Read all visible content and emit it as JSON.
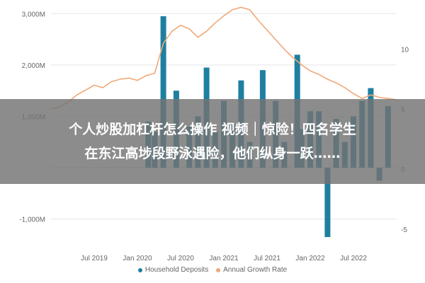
{
  "chart_data": {
    "type": "bar",
    "ylabel_left_ticks": [
      "3,000M",
      "2,000M",
      "1,000M",
      "-1,000M"
    ],
    "ylabel_right_ticks": [
      "10",
      "5",
      "0",
      "-5"
    ],
    "x_tick_labels": [
      "Jul 2019",
      "Jan 2020",
      "Jul 2020",
      "Jan 2021",
      "Jul 2021",
      "Jan 2022",
      "Jul 2022"
    ],
    "ylim_left": [
      -1500,
      3100
    ],
    "ylim_right": [
      -6.3,
      13.4
    ],
    "x_start": 2019.0,
    "x_end": 2023.0,
    "grid": true,
    "legend_position": "bottom-center",
    "series": [
      {
        "name": "Household Deposits",
        "kind": "bar",
        "color": "#1f7fa0",
        "x": [
          2020.125,
          2020.2,
          2020.3,
          2020.45,
          2020.6,
          2020.7,
          2020.8,
          2020.9,
          2021.0,
          2021.1,
          2021.2,
          2021.3,
          2021.45,
          2021.6,
          2021.7,
          2021.85,
          2021.9,
          2022.0,
          2022.1,
          2022.2,
          2022.3,
          2022.4,
          2022.5,
          2022.6,
          2022.7,
          2022.8,
          2022.9
        ],
        "values": [
          900,
          700,
          2950,
          1500,
          800,
          1000,
          1950,
          700,
          1300,
          850,
          1700,
          500,
          1900,
          1300,
          500,
          2200,
          750,
          1100,
          1100,
          -1350,
          950,
          500,
          1000,
          1300,
          1550,
          -250,
          1200
        ]
      },
      {
        "name": "Annual Growth Rate",
        "kind": "line",
        "color": "#f0a878",
        "x": [
          2019.0,
          2019.1,
          2019.2,
          2019.3,
          2019.4,
          2019.5,
          2019.6,
          2019.7,
          2019.8,
          2019.9,
          2020.0,
          2020.1,
          2020.2,
          2020.3,
          2020.4,
          2020.5,
          2020.6,
          2020.7,
          2020.8,
          2020.9,
          2021.0,
          2021.1,
          2021.2,
          2021.3,
          2021.4,
          2021.5,
          2021.6,
          2021.7,
          2021.8,
          2021.9,
          2022.0,
          2022.1,
          2022.2,
          2022.3,
          2022.4,
          2022.5,
          2022.6,
          2022.7,
          2022.8,
          2022.9,
          2023.0
        ],
        "values": [
          5.0,
          5.2,
          5.6,
          6.2,
          6.6,
          7.0,
          6.8,
          7.3,
          7.5,
          7.6,
          7.4,
          7.8,
          8.0,
          10.5,
          11.5,
          12.0,
          11.7,
          11.0,
          11.5,
          12.2,
          12.8,
          13.3,
          13.5,
          13.3,
          12.4,
          11.6,
          10.8,
          10.0,
          9.3,
          8.7,
          8.2,
          7.9,
          7.5,
          7.2,
          6.8,
          6.3,
          5.9,
          6.2,
          6.0,
          5.9,
          5.8
        ]
      }
    ]
  },
  "legend": {
    "items": [
      {
        "label": "Household Deposits",
        "color": "#1f7fa0"
      },
      {
        "label": "Annual Growth Rate",
        "color": "#f0a878"
      }
    ]
  },
  "overlay": {
    "line1": "个人炒股加杠杆怎么操作 视频｜惊险！四名学生",
    "line2": "在东江高埗段野泳遇险，他们纵身一跃……"
  }
}
